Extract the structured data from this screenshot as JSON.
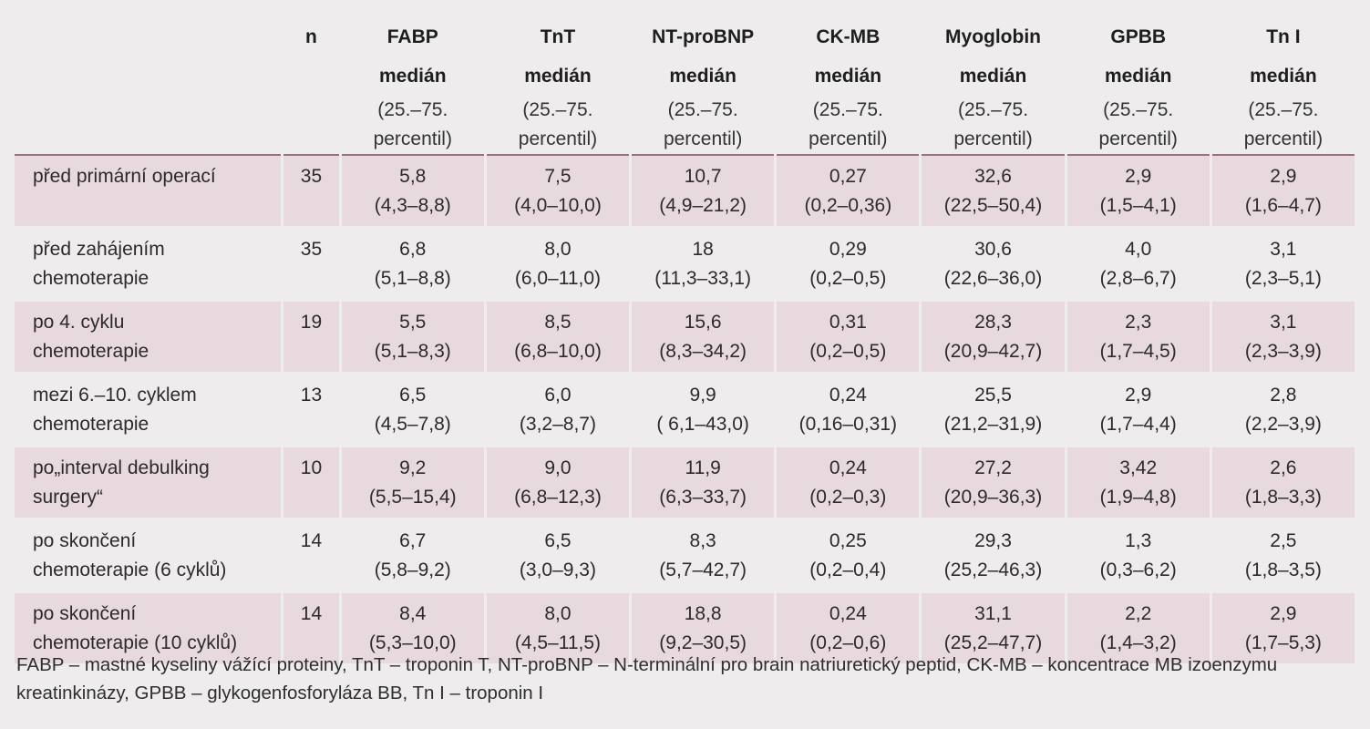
{
  "table": {
    "header": {
      "n": "n",
      "median_label": "medián",
      "percentile_label": "(25.–75.\npercentil)",
      "columns": [
        "FABP",
        "TnT",
        "NT-proBNP",
        "CK-MB",
        "Myoglobin",
        "GPBB",
        "Tn I"
      ]
    },
    "rows": [
      {
        "label": "před primární operací",
        "n": "35",
        "values": [
          "5,8\n(4,3–8,8)",
          "7,5\n(4,0–10,0)",
          "10,7\n(4,9–21,2)",
          "0,27\n(0,2–0,36)",
          "32,6\n(22,5–50,4)",
          "2,9\n(1,5–4,1)",
          "2,9\n(1,6–4,7)"
        ]
      },
      {
        "label": "před zahájením\nchemoterapie",
        "n": "35",
        "values": [
          "6,8\n(5,1–8,8)",
          "8,0\n(6,0–11,0)",
          "18\n(11,3–33,1)",
          "0,29\n(0,2–0,5)",
          "30,6\n(22,6–36,0)",
          "4,0\n(2,8–6,7)",
          "3,1\n(2,3–5,1)"
        ]
      },
      {
        "label": "po 4. cyklu\nchemoterapie",
        "n": "19",
        "values": [
          "5,5\n(5,1–8,3)",
          "8,5\n(6,8–10,0)",
          "15,6\n(8,3–34,2)",
          "0,31\n(0,2–0,5)",
          "28,3\n(20,9–42,7)",
          "2,3\n(1,7–4,5)",
          "3,1\n(2,3–3,9)"
        ]
      },
      {
        "label": "mezi 6.–10. cyklem\nchemoterapie",
        "n": "13",
        "values": [
          "6,5\n(4,5–7,8)",
          "6,0\n(3,2–8,7)",
          "9,9\n( 6,1–43,0)",
          "0,24\n(0,16–0,31)",
          "25,5\n(21,2–31,9)",
          "2,9\n(1,7–4,4)",
          "2,8\n(2,2–3,9)"
        ]
      },
      {
        "label": "po„interval debulking\nsurgery“",
        "n": "10",
        "values": [
          "9,2\n(5,5–15,4)",
          "9,0\n(6,8–12,3)",
          "11,9\n(6,3–33,7)",
          "0,24\n(0,2–0,3)",
          "27,2\n(20,9–36,3)",
          "3,42\n(1,9–4,8)",
          "2,6\n(1,8–3,3)"
        ]
      },
      {
        "label": "po skončení\nchemoterapie (6 cyklů)",
        "n": "14",
        "values": [
          "6,7\n(5,8–9,2)",
          "6,5\n(3,0–9,3)",
          "8,3\n(5,7–42,7)",
          "0,25\n(0,2–0,4)",
          "29,3\n(25,2–46,3)",
          "1,3\n(0,3–6,2)",
          "2,5\n(1,8–3,5)"
        ]
      },
      {
        "label": "po skončení\nchemoterapie (10 cyklů)",
        "n": "14",
        "values": [
          "8,4\n(5,3–10,0)",
          "8,0\n(4,5–11,5)",
          "18,8\n(9,2–30,5)",
          "0,24\n(0,2–0,6)",
          "31,1\n(25,2–47,7)",
          "2,2\n(1,4–3,2)",
          "2,9\n(1,7–5,3)"
        ]
      }
    ]
  },
  "footnote": "FABP – mastné kyseliny vážící proteiny, TnT – troponin T, NT-proBNP – N-terminální pro brain natriuretický peptid, CK-MB – koncentrace MB izoenzymu kreatinkinázy, GPBB – glykogenfosforyláza BB, Tn I – troponin I",
  "colors": {
    "page_background": "#eeecec",
    "shaded_row": "#e8d9de",
    "text": "#2b2b2b"
  }
}
